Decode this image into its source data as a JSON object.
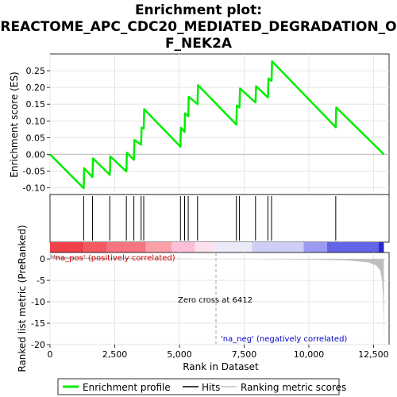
{
  "chart_data": {
    "type": "line",
    "title_lines": [
      "Enrichment plot:",
      "REACTOME_APC_CDC20_MEDIATED_DEGRADATION_O",
      "F_NEK2A"
    ],
    "top_panel": {
      "ylabel": "Enrichment score (ES)",
      "ylim": [
        -0.12,
        0.3
      ],
      "yticks": [
        -0.1,
        -0.05,
        0.0,
        0.05,
        0.1,
        0.15,
        0.2,
        0.25
      ],
      "ytick_labels": [
        "-0.10",
        "-0.05",
        "0.00",
        "0.05",
        "0.10",
        "0.15",
        "0.20",
        "0.25"
      ],
      "series": [
        {
          "name": "Enrichment profile",
          "color": "#00ee00",
          "x": [
            0,
            1300,
            1320,
            1640,
            1660,
            2310,
            2330,
            2950,
            2970,
            3240,
            3260,
            3520,
            3540,
            3620,
            3640,
            5040,
            5060,
            5200,
            5220,
            5340,
            5360,
            5700,
            5720,
            7200,
            7220,
            7320,
            7340,
            7940,
            7960,
            8420,
            8440,
            8560,
            8580,
            11040,
            11060,
            12900
          ],
          "y": [
            0.0,
            -0.101,
            -0.041,
            -0.068,
            -0.012,
            -0.061,
            -0.006,
            -0.051,
            0.005,
            -0.016,
            0.043,
            0.029,
            0.08,
            0.077,
            0.135,
            0.023,
            0.08,
            0.067,
            0.123,
            0.114,
            0.172,
            0.15,
            0.207,
            0.089,
            0.146,
            0.14,
            0.197,
            0.155,
            0.204,
            0.17,
            0.227,
            0.22,
            0.278,
            0.081,
            0.14,
            0.0
          ]
        }
      ]
    },
    "hits": [
      1300,
      1640,
      2310,
      2950,
      3240,
      3520,
      3620,
      5040,
      5200,
      5340,
      5700,
      7200,
      7320,
      7940,
      8420,
      8560,
      11040
    ],
    "bottom_panel": {
      "ylabel": "Ranked list metric (PreRanked)",
      "xlabel": "Rank in Dataset",
      "ylim": [
        -20,
        1.5
      ],
      "yticks": [
        0,
        -5,
        -10,
        -15,
        -20
      ],
      "ytick_labels": [
        "0",
        "-5",
        "-10",
        "-15",
        "-20"
      ],
      "metric_curve": {
        "x": [
          0,
          100,
          400,
          1000,
          2000,
          3500,
          5000,
          6412,
          8000,
          10000,
          11500,
          12300,
          12600,
          12750,
          12830,
          12870,
          12890,
          12900
        ],
        "y": [
          1.2,
          0.75,
          0.5,
          0.35,
          0.25,
          0.15,
          0.07,
          0.0,
          -0.06,
          -0.15,
          -0.35,
          -0.8,
          -1.5,
          -2.6,
          -5.0,
          -9.0,
          -15.0,
          -19.5
        ]
      },
      "zero_cross_label": "Zero cross at 6412",
      "zero_cross_x": 6412,
      "pos_label": "'na_pos' (positively correlated)",
      "neg_label": "'na_neg' (negatively correlated)"
    },
    "xlim": [
      0,
      13100
    ],
    "xticks": [
      0,
      2500,
      5000,
      7500,
      10000,
      12500
    ],
    "xtick_labels": [
      "0",
      "2,500",
      "5,000",
      "7,500",
      "10,000",
      "12,500"
    ],
    "ranking_bar": {
      "segments": [
        {
          "from": 0,
          "to": 1300,
          "color": "#f0404a"
        },
        {
          "from": 1300,
          "to": 2200,
          "color": "#f45a62"
        },
        {
          "from": 2200,
          "to": 3700,
          "color": "#f67580"
        },
        {
          "from": 3700,
          "to": 4700,
          "color": "#f9a0a8"
        },
        {
          "from": 4700,
          "to": 5600,
          "color": "#fbc0d8"
        },
        {
          "from": 5600,
          "to": 6400,
          "color": "#fde0ee"
        },
        {
          "from": 6400,
          "to": 7800,
          "color": "#eaeaf8"
        },
        {
          "from": 7800,
          "to": 9800,
          "color": "#cfcff5"
        },
        {
          "from": 9800,
          "to": 10700,
          "color": "#9a9af0"
        },
        {
          "from": 10700,
          "to": 12700,
          "color": "#6464e8"
        },
        {
          "from": 12700,
          "to": 12900,
          "color": "#2a2ad0"
        }
      ]
    },
    "legend": {
      "items": [
        {
          "label": "Enrichment profile",
          "color": "#00ee00",
          "kind": "thick-line"
        },
        {
          "label": "Hits",
          "color": "#000000",
          "kind": "line"
        },
        {
          "label": "Ranking metric scores",
          "color": "#c0c0c0",
          "kind": "line"
        }
      ]
    },
    "colors": {
      "es_line": "#00ee00",
      "pos_label": "#cc0000",
      "neg_label": "#0000cc",
      "metric_fill": "#bebebe",
      "zero_cross_line": "#a0a0a0"
    }
  }
}
